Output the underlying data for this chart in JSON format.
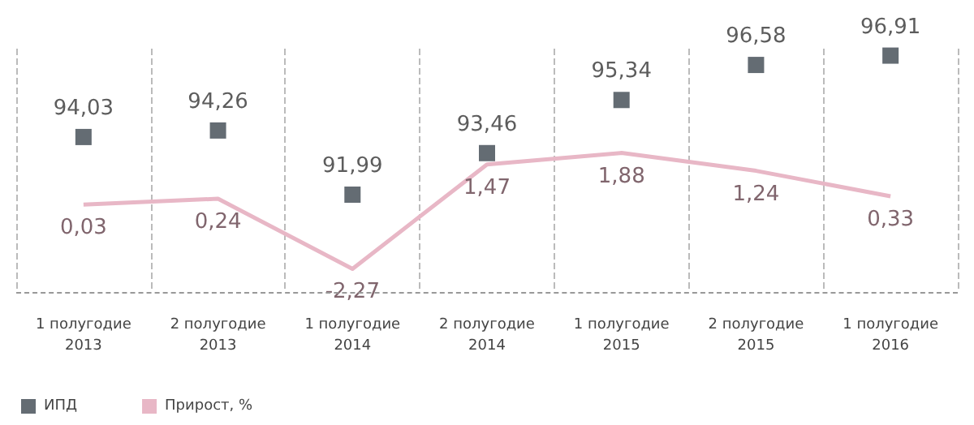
{
  "chart_data": {
    "type": "scatter",
    "categories": [
      "1 полугодие\n2013",
      "2 полугодие\n2013",
      "1 полугодие\n2014",
      "2 полугодие\n2014",
      "1 полугодие\n2015",
      "2 полугодие\n2015",
      "1 полугодие\n2016"
    ],
    "series": [
      {
        "name": "ИПД",
        "marker": "square",
        "color": "#3d4750",
        "values": [
          94.03,
          94.26,
          91.99,
          93.46,
          95.34,
          96.58,
          96.91
        ],
        "value_labels": [
          "94,03",
          "94,26",
          "91,99",
          "93,46",
          "95,34",
          "96,58",
          "96,91"
        ]
      },
      {
        "name": "Прирост, %",
        "type": "line",
        "axis": "y2",
        "marker": "none",
        "color": "#e8b7c6",
        "values": [
          0.03,
          0.24,
          -2.27,
          1.47,
          1.88,
          1.24,
          0.33
        ],
        "value_labels": [
          "0,03",
          "0,24",
          "-2,27",
          "1,47",
          "1,88",
          "1,24",
          "0,33"
        ]
      }
    ],
    "grid": "x",
    "legend": "bottom left",
    "tick_labels": "x"
  }
}
